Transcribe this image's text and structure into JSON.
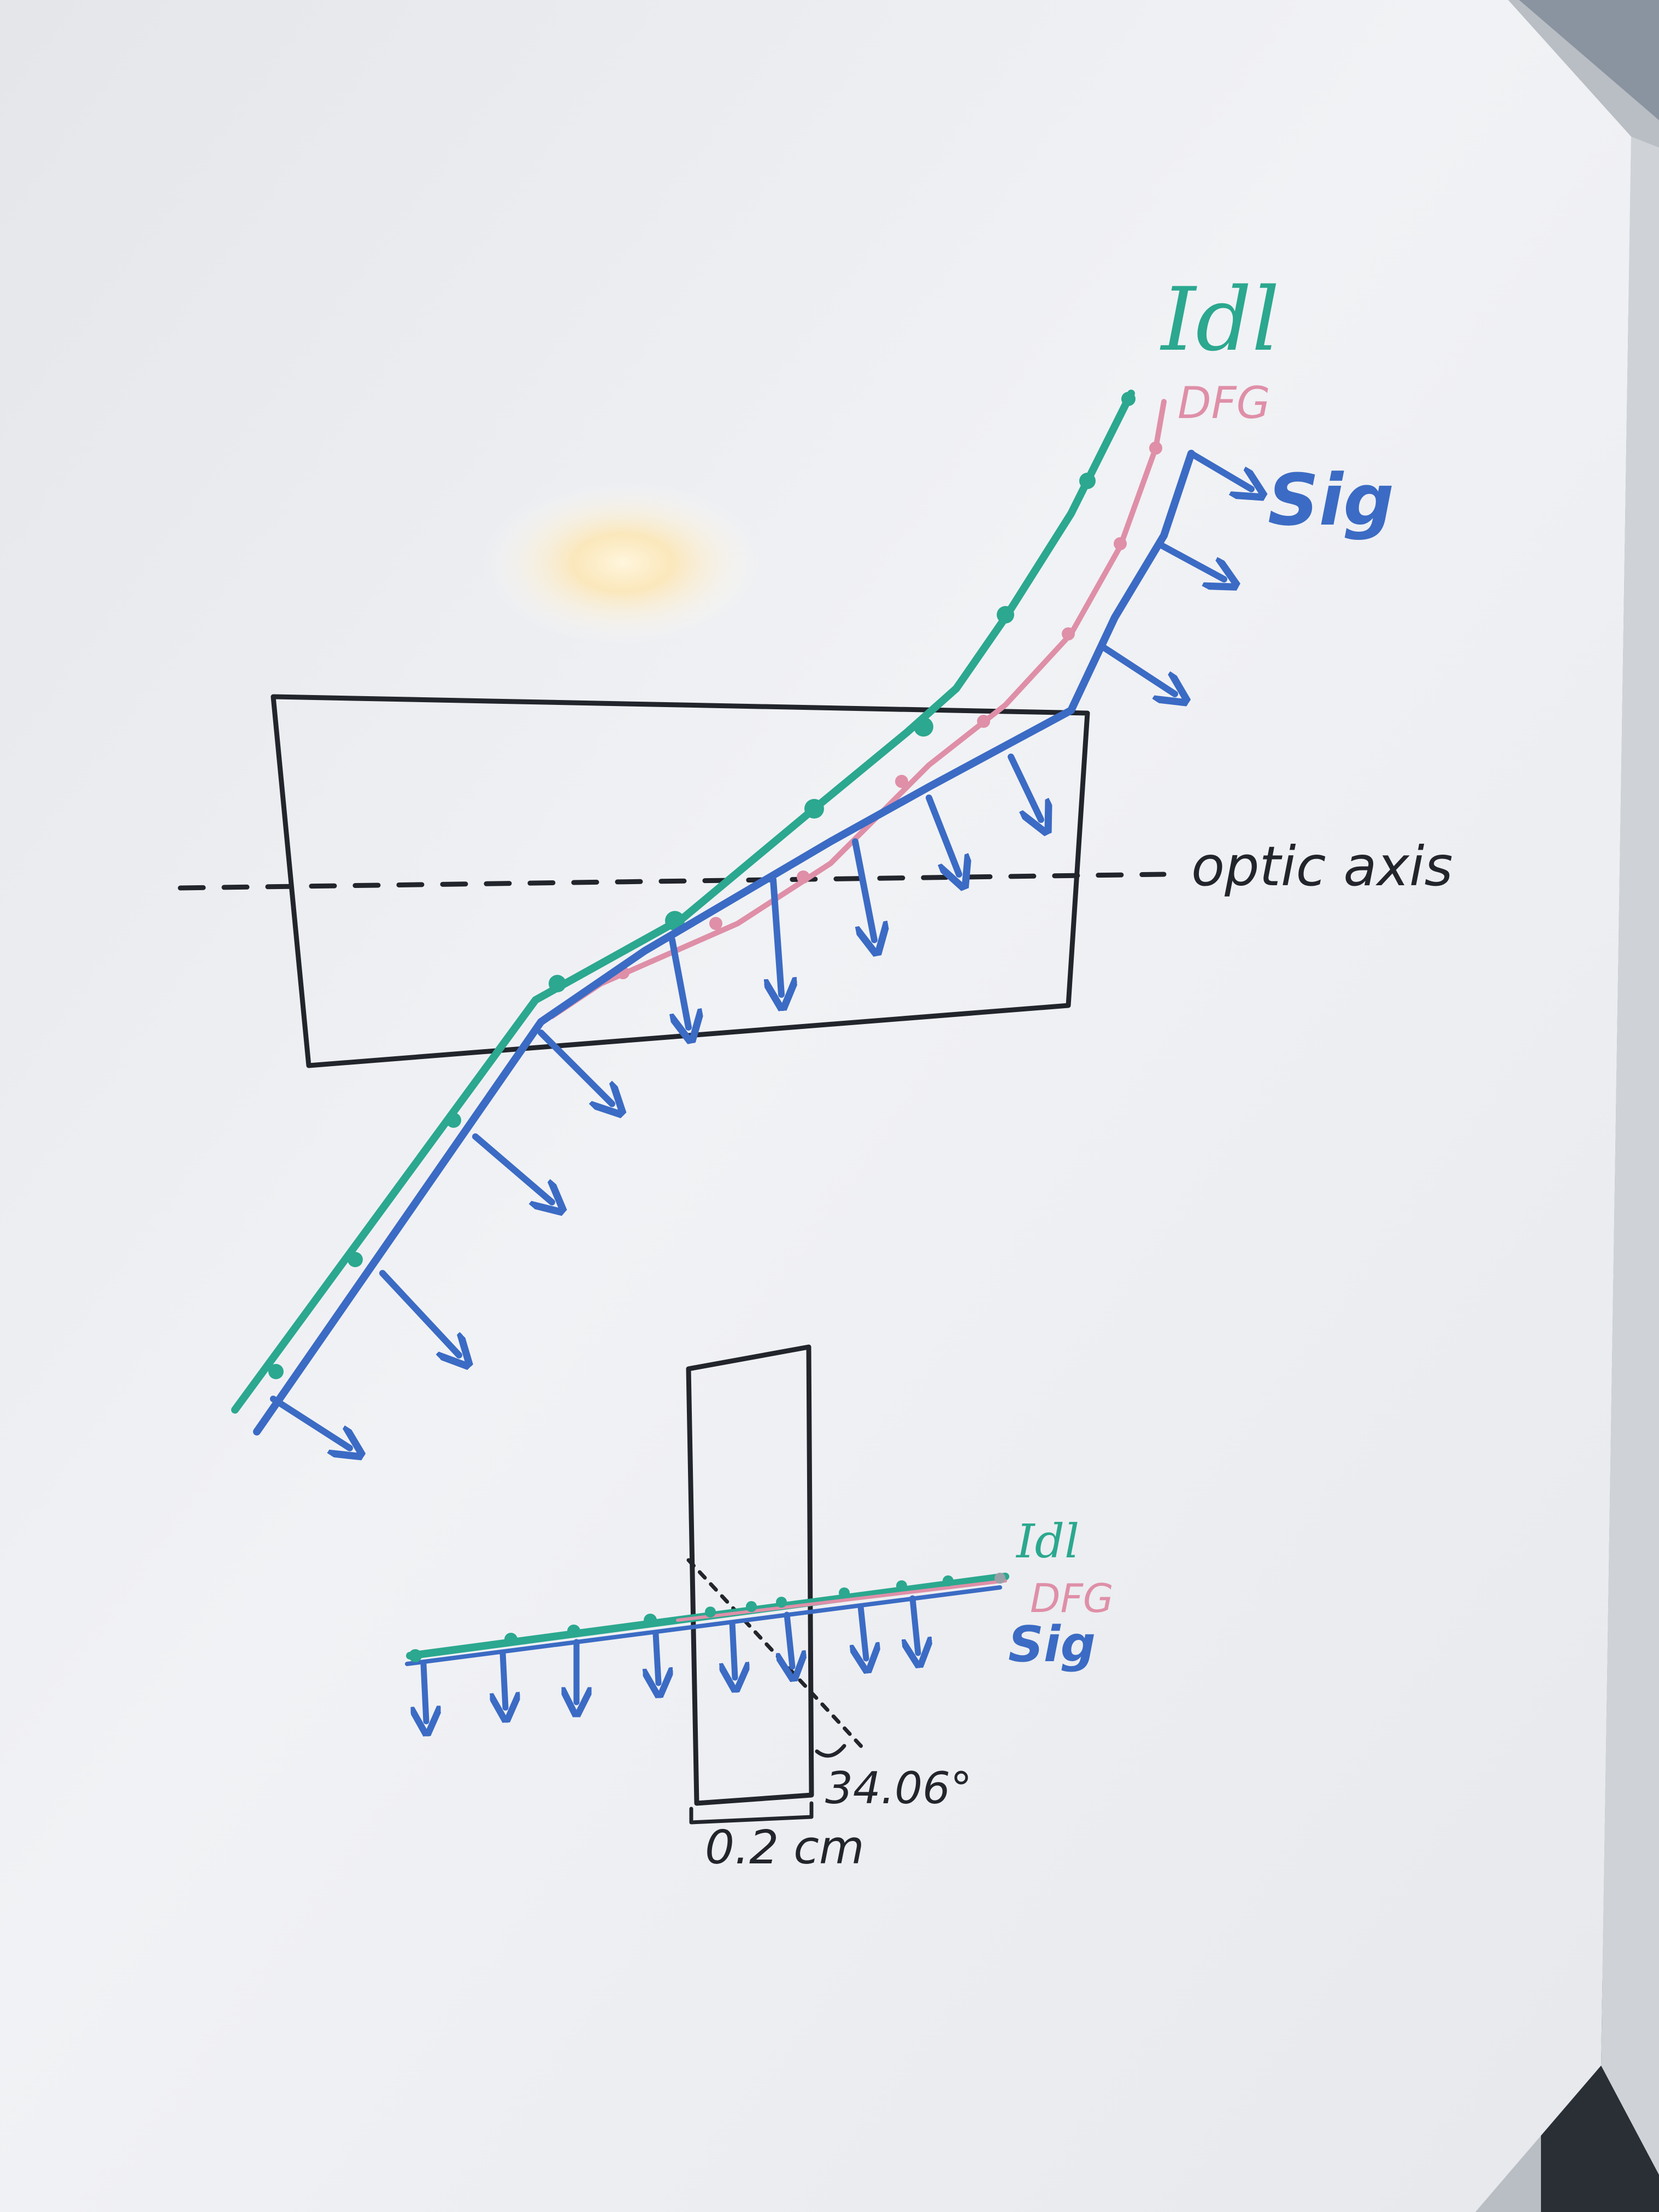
{
  "colors": {
    "board": "#eef0f3",
    "frame": "#c4c8cd",
    "ink_black": "#22252b",
    "ink_teal": "#2ba88f",
    "ink_pink": "#df8fa8",
    "ink_blue": "#3b6bc4",
    "glare": "#ffe7b0"
  },
  "top_diagram": {
    "labels": {
      "idler": "Idl",
      "dfg": "DFG",
      "signal": "Sig",
      "optic_axis": "optic axis"
    }
  },
  "bottom_diagram": {
    "labels": {
      "idler": "Idl",
      "dfg": "DFG",
      "signal": "Sig",
      "angle": "34.06°",
      "thickness": "0.2 cm"
    }
  }
}
